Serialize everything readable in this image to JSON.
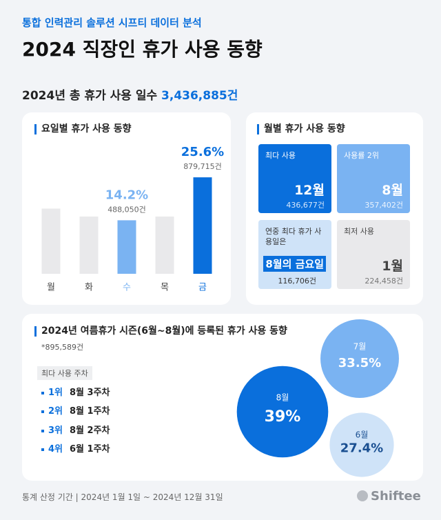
{
  "header": {
    "subtitle": "통합 인력관리 솔루션 시프티 데이터 분석",
    "title": "2024 직장인 휴가 사용 동향"
  },
  "total": {
    "label": "2024년 총 휴가 사용 일수",
    "value": "3,436,885건"
  },
  "weekday": {
    "title": "요일별 휴가 사용 동향"
  },
  "monthly": {
    "title": "월별 휴가 사용 동향",
    "cards": [
      {
        "label": "최다 사용",
        "month": "12월",
        "count": "436,677건"
      },
      {
        "label": "사용률 2위",
        "month": "8월",
        "count": "357,402건"
      },
      {
        "label": "연중 최다 휴가 사용일은",
        "month": "8월의 금요일",
        "count": "116,706건"
      },
      {
        "label": "최저 사용",
        "month": "1월",
        "count": "224,458건"
      }
    ]
  },
  "summer": {
    "title": "2024년 여름휴가 시즌(6월~8월)에 등록된 휴가 사용 동향",
    "note": "*895,589건",
    "ranking_label": "최다 사용 주차",
    "ranking": [
      {
        "rank": "1위",
        "week": "8월 3주차"
      },
      {
        "rank": "2위",
        "week": "8월 1주차"
      },
      {
        "rank": "3위",
        "week": "8월 2주차"
      },
      {
        "rank": "4위",
        "week": "6월 1주차"
      }
    ]
  },
  "footer": {
    "period": "통계 산정 기간 | 2024년 1월 1일 ~ 2024년 12월 31일",
    "logo": "Shiftee"
  },
  "chart_data": [
    {
      "type": "bar",
      "categories": [
        "월",
        "화",
        "수",
        "목",
        "금"
      ],
      "values": [
        17.3,
        15.2,
        14.2,
        15.2,
        25.6
      ],
      "value_labels": [
        null,
        null,
        "14.2%",
        null,
        "25.6%"
      ],
      "sublabels": [
        null,
        null,
        "488,050건",
        null,
        "879,715건"
      ],
      "colors": [
        "#e9e9eb",
        "#e9e9eb",
        "#7ab3f2",
        "#e9e9eb",
        "#0a6fdc"
      ],
      "ylim": [
        0,
        28
      ]
    },
    {
      "type": "bubble",
      "categories": [
        "8월",
        "7월",
        "6월"
      ],
      "values": [
        39,
        33.5,
        27.4
      ],
      "value_labels": [
        "39%",
        "33.5%",
        "27.4%"
      ],
      "colors": [
        "#0a6fdc",
        "#7ab3f2",
        "#cfe3f8"
      ]
    }
  ]
}
